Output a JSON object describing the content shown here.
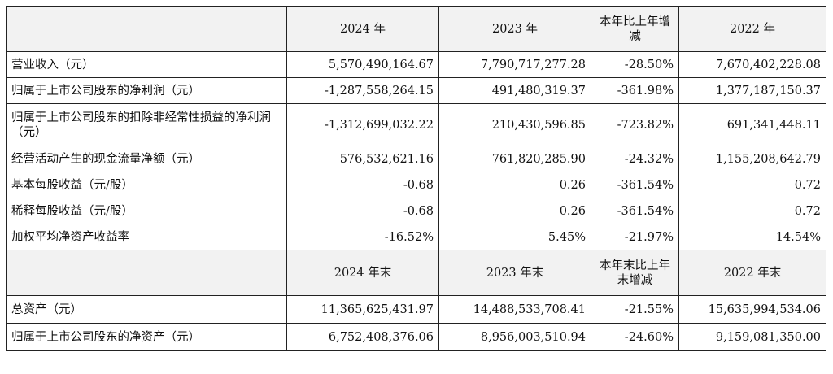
{
  "header1": {
    "label": "",
    "col1": "2024 年",
    "col2": "2023 年",
    "col3": "本年比上年增减",
    "col4": "2022 年"
  },
  "header2": {
    "label": "",
    "col1": "2024 年末",
    "col2": "2023 年末",
    "col3": "本年末比上年末增减",
    "col4": "2022 年末"
  },
  "rows": [
    {
      "label": "营业收入（元）",
      "v2024": "5,570,490,164.67",
      "v2023": "7,790,717,277.28",
      "change": "-28.50%",
      "v2022": "7,670,402,228.08"
    },
    {
      "label": "归属于上市公司股东的净利润（元）",
      "v2024": "-1,287,558,264.15",
      "v2023": "491,480,319.37",
      "change": "-361.98%",
      "v2022": "1,377,187,150.37"
    },
    {
      "label": "归属于上市公司股东的扣除非经常性损益的净利润（元）",
      "v2024": "-1,312,699,032.22",
      "v2023": "210,430,596.85",
      "change": "-723.82%",
      "v2022": "691,341,448.11"
    },
    {
      "label": "经营活动产生的现金流量净额（元）",
      "v2024": "576,532,621.16",
      "v2023": "761,820,285.90",
      "change": "-24.32%",
      "v2022": "1,155,208,642.79"
    },
    {
      "label": "基本每股收益（元/股）",
      "v2024": "-0.68",
      "v2023": "0.26",
      "change": "-361.54%",
      "v2022": "0.72"
    },
    {
      "label": "稀释每股收益（元/股）",
      "v2024": "-0.68",
      "v2023": "0.26",
      "change": "-361.54%",
      "v2022": "0.72"
    },
    {
      "label": "加权平均净资产收益率",
      "v2024": "-16.52%",
      "v2023": "5.45%",
      "change": "-21.97%",
      "v2022": "14.54%"
    }
  ],
  "rows2": [
    {
      "label": "总资产（元）",
      "v2024": "11,365,625,431.97",
      "v2023": "14,488,533,708.41",
      "change": "-21.55%",
      "v2022": "15,635,994,534.06"
    },
    {
      "label": "归属于上市公司股东的净资产（元）",
      "v2024": "6,752,408,376.06",
      "v2023": "8,956,003,510.94",
      "change": "-24.60%",
      "v2022": "9,159,081,350.00"
    }
  ]
}
